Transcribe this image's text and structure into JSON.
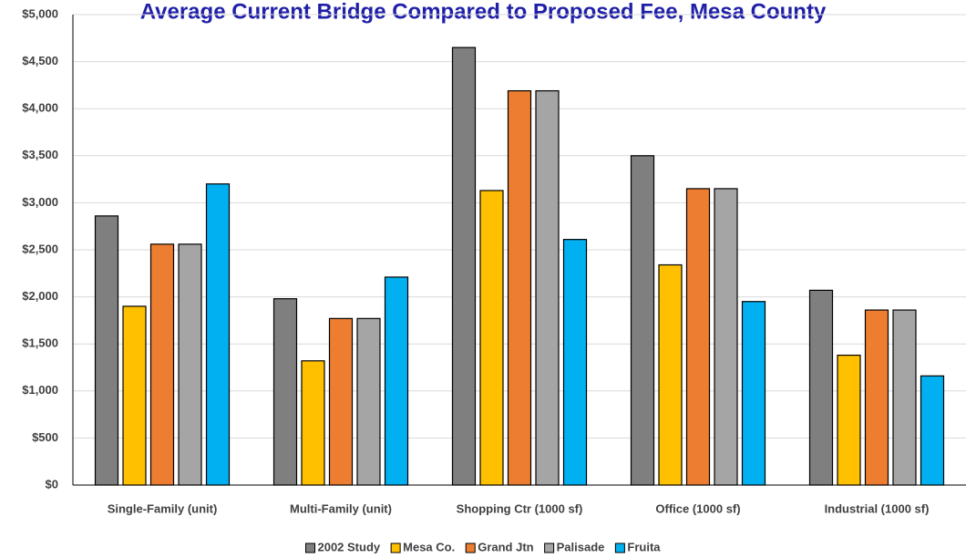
{
  "chart_data": {
    "type": "bar",
    "title": "Average Current Bridge Compared to Proposed Fee, Mesa County",
    "xlabel": "",
    "ylabel": "",
    "ylim": [
      0,
      5000
    ],
    "yticks": [
      0,
      500,
      1000,
      1500,
      2000,
      2500,
      3000,
      3500,
      4000,
      4500,
      5000
    ],
    "ytick_labels": [
      "$0",
      "$500",
      "$1,000",
      "$1,500",
      "$2,000",
      "$2,500",
      "$3,000",
      "$3,500",
      "$4,000",
      "$4,500",
      "$5,000"
    ],
    "categories": [
      "Single-Family (unit)",
      "Multi-Family (unit)",
      "Shopping Ctr (1000 sf)",
      "Office (1000 sf)",
      "Industrial (1000 sf)"
    ],
    "series": [
      {
        "name": "2002 Study",
        "color": "#7f7f7f",
        "values": [
          2860,
          1980,
          4650,
          3500,
          2070
        ]
      },
      {
        "name": "Mesa Co.",
        "color": "#ffc000",
        "values": [
          1900,
          1320,
          3130,
          2340,
          1380
        ]
      },
      {
        "name": "Grand Jtn",
        "color": "#ed7d31",
        "values": [
          2560,
          1770,
          4190,
          3150,
          1860
        ]
      },
      {
        "name": "Palisade",
        "color": "#a5a5a5",
        "values": [
          2560,
          1770,
          4190,
          3150,
          1860
        ]
      },
      {
        "name": "Fruita",
        "color": "#00b0f0",
        "values": [
          3200,
          2210,
          2610,
          1950,
          1160
        ]
      }
    ],
    "grid": true,
    "legend_position": "bottom"
  }
}
